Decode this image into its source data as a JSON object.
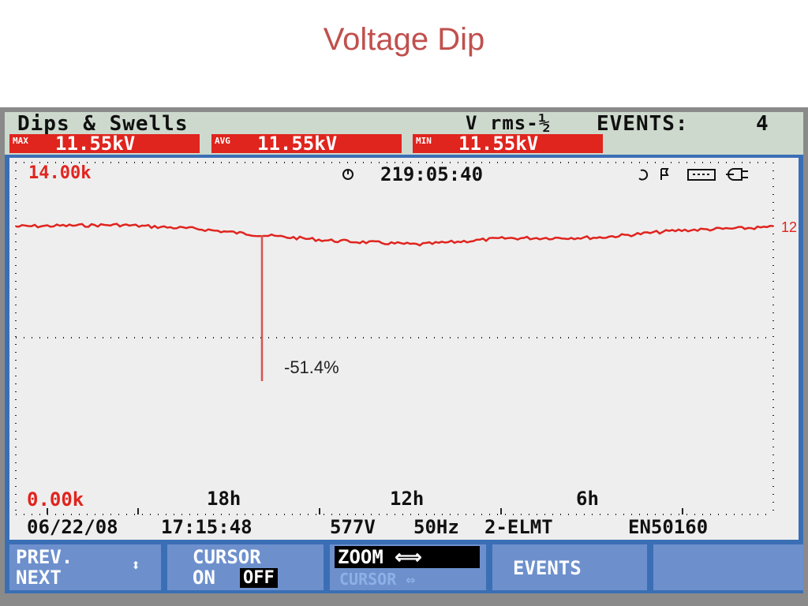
{
  "slide": {
    "title": "Voltage Dip"
  },
  "header": {
    "mode": "Dips & Swells",
    "measurement": "V rms-½",
    "events_label": "EVENTS:",
    "events_count": "4"
  },
  "readings": [
    {
      "tag": "MAX",
      "value": "11.55kV"
    },
    {
      "tag": "AVG",
      "value": "11.55kV"
    },
    {
      "tag": "MIN",
      "value": "11.55kV"
    }
  ],
  "plot": {
    "y_top": "14.00k",
    "y_bottom": "0.00k",
    "timer": "219:05:40",
    "right_marker": "12",
    "annotation": "-51.4%",
    "time_ticks": [
      "18h",
      "12h",
      "6h"
    ],
    "trace_level_kv": 12,
    "dip_depth_percent": -51.4
  },
  "status": {
    "date": "06/22/08",
    "time": "17:15:48",
    "nominal": "577V",
    "frequency": "50Hz",
    "config": "2-ELMT",
    "standard": "EN50160"
  },
  "softkeys": {
    "prev": "PREV.",
    "next": "NEXT",
    "cursor_top": "CURSOR",
    "cursor_on": "ON",
    "cursor_off": "OFF",
    "zoom": "ZOOM",
    "zoom_cursor": "CURSOR",
    "events": "EVENTS"
  },
  "colors": {
    "title": "#c0504d",
    "trace": "#e0241e",
    "frame": "#3b6fb5",
    "softkey": "#6d90cd"
  }
}
